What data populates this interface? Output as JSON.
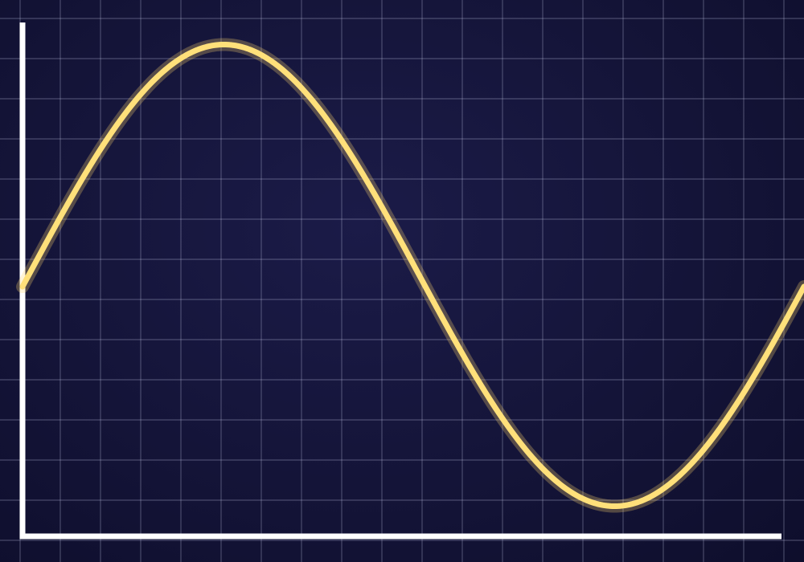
{
  "chart_data": {
    "type": "line",
    "title": "",
    "xlabel": "",
    "ylabel": "",
    "grid": true,
    "legend": "none",
    "xlim": [
      0,
      19.3
    ],
    "ylim": [
      -6.2,
      6.4
    ],
    "series": [
      {
        "color": "#ffe07a",
        "function": "sine",
        "amplitude": 5.75,
        "period": 19.3,
        "phase_shift": 0.15,
        "points_x": [
          0,
          0.5,
          1,
          1.5,
          2,
          2.5,
          3,
          3.5,
          4,
          4.5,
          4.98,
          5.5,
          6,
          6.5,
          7,
          7.5,
          8,
          8.5,
          9,
          9.5,
          9.8,
          10.5,
          11,
          11.5,
          12,
          12.5,
          13,
          13.5,
          14,
          14.63,
          15,
          15.5,
          16,
          16.5,
          17,
          17.5,
          18,
          18.5,
          19,
          19.3
        ],
        "points_y": [
          -0.3,
          0.6,
          1.5,
          2.4,
          3.2,
          3.9,
          4.6,
          5.1,
          5.5,
          5.7,
          5.75,
          5.7,
          5.5,
          5.1,
          4.6,
          4.0,
          3.2,
          2.4,
          1.5,
          0.6,
          0.0,
          -1.9,
          -2.8,
          -3.6,
          -4.3,
          -4.9,
          -5.4,
          -5.65,
          -5.75,
          -5.75,
          -5.7,
          -5.4,
          -4.9,
          -4.3,
          -3.6,
          -2.8,
          -1.9,
          -0.9,
          0.0,
          0.3
        ]
      }
    ]
  }
}
